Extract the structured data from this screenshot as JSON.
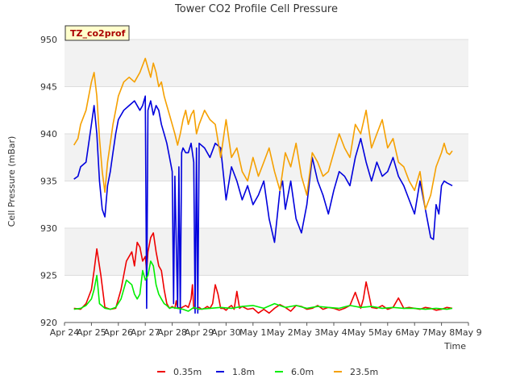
{
  "chart_data": {
    "type": "line",
    "title": "Tower CO2 Profile Cell Pressure",
    "xlabel": "Time",
    "ylabel": "Cell Pressure (mBar)",
    "badge": "TZ_co2prof",
    "xlim": [
      0,
      15
    ],
    "ylim": [
      920,
      950
    ],
    "x_tick_labels": [
      "Apr 24",
      "Apr 25",
      "Apr 26",
      "Apr 27",
      "Apr 28",
      "Apr 29",
      "Apr 30",
      "May 1",
      "May 2",
      "May 3",
      "May 4",
      "May 5",
      "May 6",
      "May 7",
      "May 8",
      "May 9"
    ],
    "y_ticks": [
      920,
      925,
      930,
      935,
      940,
      945,
      950
    ],
    "grid": true,
    "legend_position": "bottom",
    "series": [
      {
        "name": "0.35m",
        "color": "#ee0000",
        "x": [
          0.35,
          0.6,
          0.8,
          1.0,
          1.1,
          1.2,
          1.35,
          1.5,
          1.7,
          1.9,
          2.1,
          2.3,
          2.5,
          2.6,
          2.7,
          2.8,
          2.9,
          3.0,
          3.05,
          3.1,
          3.2,
          3.3,
          3.4,
          3.5,
          3.6,
          3.7,
          3.8,
          3.9,
          4.0,
          4.1,
          4.15,
          4.2,
          4.3,
          4.5,
          4.6,
          4.7,
          4.75,
          4.8,
          4.9,
          5.0,
          5.1,
          5.2,
          5.3,
          5.4,
          5.5,
          5.6,
          5.7,
          5.8,
          5.9,
          6.0,
          6.1,
          6.2,
          6.3,
          6.4,
          6.5,
          6.6,
          6.8,
          7.0,
          7.2,
          7.4,
          7.6,
          7.8,
          8.0,
          8.2,
          8.4,
          8.6,
          8.8,
          9.0,
          9.2,
          9.4,
          9.6,
          9.8,
          10.0,
          10.2,
          10.4,
          10.6,
          10.8,
          11.0,
          11.1,
          11.2,
          11.3,
          11.4,
          11.6,
          11.8,
          12.0,
          12.2,
          12.4,
          12.6,
          12.8,
          13.0,
          13.2,
          13.4,
          13.6,
          13.8,
          14.0,
          14.2,
          14.4
        ],
        "y": [
          921.5,
          921.4,
          922.0,
          923.5,
          925.5,
          927.8,
          925.0,
          921.6,
          921.4,
          921.5,
          923.5,
          926.5,
          927.5,
          926.0,
          928.5,
          928.0,
          926.5,
          927.0,
          925.5,
          927.5,
          929.0,
          929.5,
          927.5,
          926.0,
          925.5,
          923.5,
          922.0,
          921.5,
          921.7,
          921.5,
          922.3,
          921.6,
          921.5,
          921.8,
          921.6,
          922.5,
          924.0,
          921.5,
          921.5,
          921.6,
          921.4,
          921.5,
          921.7,
          921.5,
          922.0,
          924.0,
          923.0,
          921.5,
          921.5,
          921.3,
          921.6,
          921.8,
          921.4,
          923.3,
          921.5,
          921.7,
          921.4,
          921.5,
          921.0,
          921.4,
          921.0,
          921.5,
          921.9,
          921.6,
          921.2,
          921.8,
          921.7,
          921.4,
          921.5,
          921.8,
          921.4,
          921.6,
          921.5,
          921.3,
          921.5,
          921.8,
          923.2,
          921.5,
          922.5,
          924.3,
          923.0,
          921.6,
          921.5,
          921.8,
          921.4,
          921.6,
          922.6,
          921.5,
          921.6,
          921.5,
          921.4,
          921.6,
          921.5,
          921.3,
          921.4,
          921.6,
          921.5
        ]
      },
      {
        "name": "1.8m",
        "color": "#0000dd",
        "x": [
          0.35,
          0.5,
          0.6,
          0.8,
          1.0,
          1.1,
          1.2,
          1.3,
          1.4,
          1.5,
          1.6,
          1.7,
          1.8,
          1.9,
          2.0,
          2.2,
          2.4,
          2.6,
          2.8,
          2.9,
          3.0,
          3.05,
          3.1,
          3.2,
          3.3,
          3.4,
          3.5,
          3.6,
          3.7,
          3.8,
          3.9,
          4.0,
          4.05,
          4.1,
          4.2,
          4.25,
          4.3,
          4.35,
          4.4,
          4.5,
          4.6,
          4.7,
          4.8,
          4.85,
          4.9,
          4.95,
          5.0,
          5.2,
          5.4,
          5.6,
          5.8,
          6.0,
          6.2,
          6.4,
          6.6,
          6.8,
          7.0,
          7.2,
          7.4,
          7.6,
          7.8,
          8.0,
          8.1,
          8.2,
          8.4,
          8.6,
          8.8,
          9.0,
          9.2,
          9.4,
          9.6,
          9.8,
          10.0,
          10.2,
          10.4,
          10.6,
          10.8,
          11.0,
          11.2,
          11.4,
          11.6,
          11.8,
          12.0,
          12.2,
          12.4,
          12.6,
          12.8,
          13.0,
          13.2,
          13.4,
          13.6,
          13.7,
          13.8,
          13.9,
          14.0,
          14.1,
          14.2,
          14.4
        ],
        "y": [
          935.2,
          935.5,
          936.5,
          937.0,
          941.0,
          943.0,
          940.0,
          935.0,
          932.0,
          931.2,
          934.5,
          936.0,
          938.0,
          940.0,
          941.5,
          942.5,
          943.0,
          943.5,
          942.5,
          943.0,
          944.0,
          921.5,
          942.5,
          943.5,
          942.0,
          943.0,
          942.5,
          941.0,
          940.0,
          939.0,
          937.5,
          936.0,
          922.0,
          935.5,
          921.5,
          936.5,
          921.0,
          938.0,
          938.5,
          938.0,
          938.0,
          939.0,
          937.0,
          921.0,
          938.5,
          921.0,
          939.0,
          938.5,
          937.5,
          939.0,
          938.5,
          933.0,
          936.5,
          935.0,
          933.0,
          934.5,
          932.5,
          933.5,
          935.0,
          931.0,
          928.5,
          934.0,
          935.0,
          932.0,
          935.0,
          931.0,
          929.5,
          932.5,
          937.5,
          935.0,
          933.5,
          931.5,
          934.0,
          936.0,
          935.5,
          934.5,
          937.5,
          939.5,
          937.0,
          935.0,
          937.0,
          935.5,
          936.0,
          937.5,
          935.5,
          934.5,
          933.0,
          931.5,
          935.0,
          932.0,
          929.0,
          928.8,
          932.5,
          931.5,
          934.5,
          935.0,
          934.8,
          934.5
        ]
      },
      {
        "name": "6.0m",
        "color": "#00ee00",
        "x": [
          0.35,
          0.6,
          0.8,
          1.0,
          1.1,
          1.2,
          1.3,
          1.5,
          1.7,
          1.9,
          2.1,
          2.3,
          2.5,
          2.6,
          2.7,
          2.8,
          2.9,
          3.0,
          3.1,
          3.2,
          3.3,
          3.4,
          3.5,
          3.6,
          3.7,
          3.8,
          3.9,
          4.0,
          4.2,
          4.4,
          4.6,
          4.8,
          5.0,
          5.4,
          5.8,
          6.2,
          6.6,
          7.0,
          7.4,
          7.8,
          8.2,
          8.6,
          9.0,
          9.4,
          9.8,
          10.2,
          10.6,
          11.0,
          11.4,
          11.8,
          12.2,
          12.6,
          13.0,
          13.4,
          13.8,
          14.2,
          14.4
        ],
        "y": [
          921.4,
          921.5,
          921.8,
          922.5,
          923.5,
          925.0,
          922.0,
          921.5,
          921.4,
          921.6,
          922.5,
          924.5,
          924.0,
          923.0,
          922.5,
          923.0,
          925.5,
          924.5,
          925.0,
          926.5,
          926.0,
          924.0,
          923.0,
          922.5,
          922.0,
          921.8,
          921.5,
          921.6,
          921.5,
          921.4,
          921.2,
          921.6,
          921.4,
          921.5,
          921.6,
          921.5,
          921.7,
          921.8,
          921.5,
          922.0,
          921.6,
          921.8,
          921.5,
          921.7,
          921.6,
          921.5,
          921.8,
          921.6,
          921.7,
          921.5,
          921.6,
          921.5,
          921.5,
          921.4,
          921.5,
          921.4,
          921.5
        ]
      },
      {
        "name": "23.5m",
        "color": "#f5a000",
        "x": [
          0.35,
          0.5,
          0.6,
          0.8,
          1.0,
          1.1,
          1.2,
          1.3,
          1.4,
          1.5,
          1.6,
          1.7,
          1.8,
          1.9,
          2.0,
          2.2,
          2.4,
          2.6,
          2.8,
          3.0,
          3.1,
          3.2,
          3.3,
          3.4,
          3.5,
          3.6,
          3.7,
          3.8,
          3.9,
          4.0,
          4.1,
          4.2,
          4.3,
          4.4,
          4.5,
          4.6,
          4.7,
          4.8,
          4.9,
          5.0,
          5.2,
          5.4,
          5.6,
          5.8,
          6.0,
          6.2,
          6.4,
          6.6,
          6.8,
          7.0,
          7.2,
          7.4,
          7.6,
          7.8,
          8.0,
          8.2,
          8.4,
          8.6,
          8.8,
          9.0,
          9.2,
          9.4,
          9.6,
          9.8,
          10.0,
          10.2,
          10.4,
          10.6,
          10.8,
          11.0,
          11.2,
          11.4,
          11.6,
          11.8,
          12.0,
          12.2,
          12.4,
          12.6,
          12.8,
          13.0,
          13.2,
          13.4,
          13.6,
          13.8,
          14.0,
          14.1,
          14.2,
          14.3,
          14.4
        ],
        "y": [
          938.8,
          939.5,
          941.0,
          942.5,
          945.5,
          946.5,
          944.0,
          939.5,
          936.0,
          933.8,
          937.0,
          939.0,
          941.0,
          942.5,
          944.0,
          945.5,
          946.0,
          945.5,
          946.5,
          948.0,
          947.0,
          946.0,
          947.5,
          946.5,
          945.0,
          945.5,
          944.0,
          943.0,
          942.0,
          941.0,
          940.0,
          938.8,
          940.0,
          941.5,
          942.5,
          941.0,
          942.0,
          942.5,
          940.0,
          941.0,
          942.5,
          941.5,
          941.0,
          937.5,
          941.5,
          937.5,
          938.5,
          936.0,
          935.0,
          937.5,
          935.5,
          937.0,
          938.5,
          936.0,
          934.0,
          938.0,
          936.5,
          939.0,
          935.5,
          933.5,
          938.0,
          937.0,
          935.5,
          936.0,
          938.0,
          940.0,
          938.5,
          937.5,
          941.0,
          940.0,
          942.5,
          938.5,
          940.0,
          941.5,
          938.5,
          939.5,
          937.0,
          936.5,
          935.0,
          934.0,
          936.0,
          932.0,
          933.5,
          936.5,
          938.0,
          939.0,
          938.0,
          937.8,
          938.2
        ]
      }
    ]
  }
}
